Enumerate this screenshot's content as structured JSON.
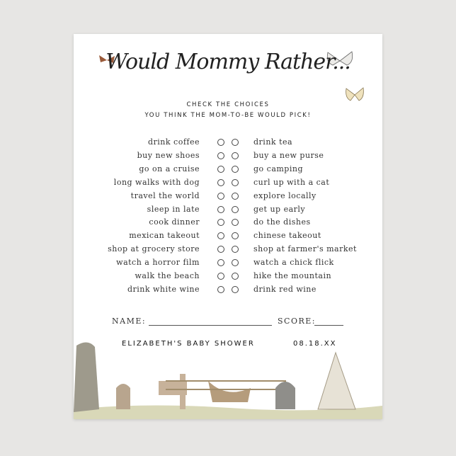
{
  "title": "Would Mommy Rather...",
  "instructions": [
    "CHECK THE CHOICES",
    "YOU THINK THE MOM-TO-BE WOULD PICK!"
  ],
  "choices": [
    {
      "left": "drink coffee",
      "right": "drink tea"
    },
    {
      "left": "buy new shoes",
      "right": "buy a new purse"
    },
    {
      "left": "go on a cruise",
      "right": "go camping"
    },
    {
      "left": "long walks with dog",
      "right": "curl up with a cat"
    },
    {
      "left": "travel the world",
      "right": "explore locally"
    },
    {
      "left": "sleep in late",
      "right": "get up early"
    },
    {
      "left": "cook dinner",
      "right": "do the dishes"
    },
    {
      "left": "mexican takeout",
      "right": "chinese takeout"
    },
    {
      "left": "shop at grocery store",
      "right": "shop at farmer's market"
    },
    {
      "left": "watch a horror film",
      "right": "watch a chick flick"
    },
    {
      "left": "walk the beach",
      "right": "hike the mountain"
    },
    {
      "left": "drink white wine",
      "right": "drink red wine"
    }
  ],
  "name_label": "NAME:",
  "score_label": "SCORE:",
  "event_name": "ELIZABETH'S BABY SHOWER",
  "event_date": "08.18.XX"
}
